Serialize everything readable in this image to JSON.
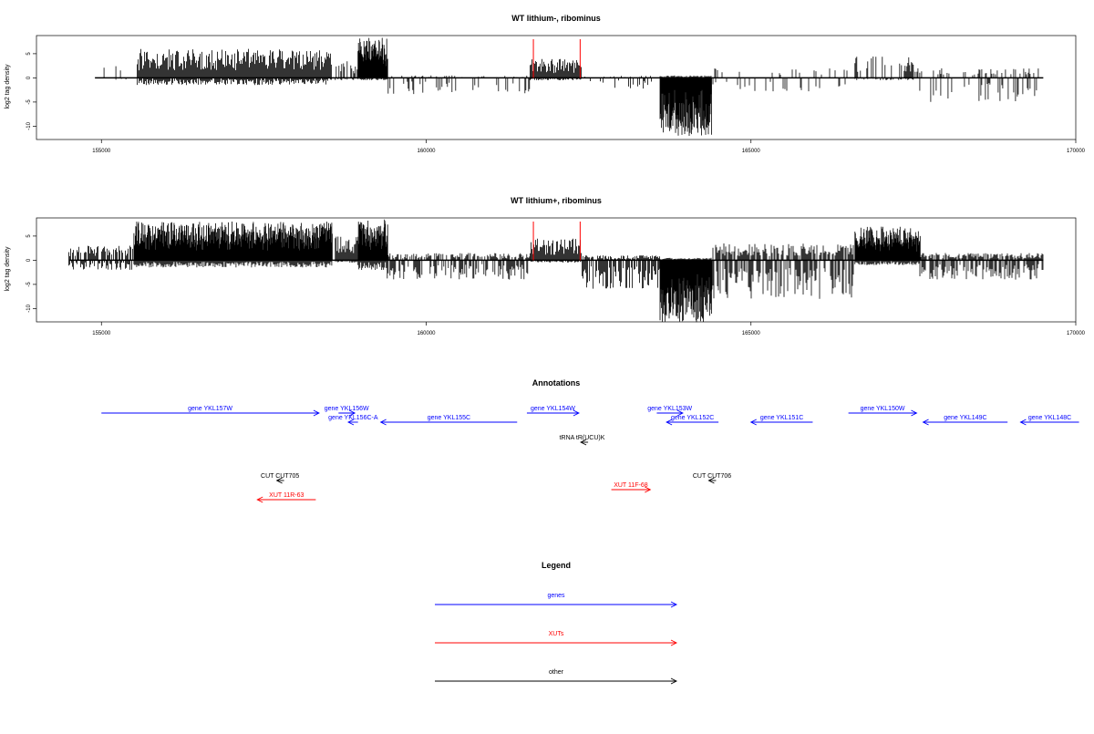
{
  "colors": {
    "gene": "#0000ff",
    "xut": "#ff0000",
    "other": "#000000",
    "marker": "#ff0000",
    "bars": "#000000"
  },
  "chart_data": [
    {
      "type": "bar",
      "title": "WT lithium-, ribominus",
      "ylabel": "log2 tag density",
      "xlim": [
        154000,
        170000
      ],
      "ylim": [
        -12,
        8
      ],
      "xticks": [
        155000,
        160000,
        165000,
        170000
      ],
      "yticks": [
        5,
        0,
        -5,
        -10
      ],
      "markers": [
        161650,
        162370
      ],
      "segments": [
        {
          "start": 154900,
          "end": 155400,
          "density": 0.12,
          "pos": 3.5,
          "neg": 0.5
        },
        {
          "start": 155550,
          "end": 158550,
          "density": 1.0,
          "pos": 6.0,
          "neg": 1.5
        },
        {
          "start": 158600,
          "end": 158950,
          "density": 0.5,
          "pos": 3.5,
          "neg": 0.5
        },
        {
          "start": 158950,
          "end": 159400,
          "density": 1.3,
          "pos": 8.5,
          "neg": 0.5
        },
        {
          "start": 159400,
          "end": 161600,
          "density": 0.2,
          "pos": 0.5,
          "neg": 3.5
        },
        {
          "start": 161600,
          "end": 162400,
          "density": 1.0,
          "pos": 4.0,
          "neg": 0.5
        },
        {
          "start": 162400,
          "end": 163600,
          "density": 0.2,
          "pos": 0.5,
          "neg": 2.5
        },
        {
          "start": 163600,
          "end": 164400,
          "density": 2.5,
          "pos": 0.5,
          "neg": 12.0
        },
        {
          "start": 164400,
          "end": 166600,
          "density": 0.15,
          "pos": 2.0,
          "neg": 3.0
        },
        {
          "start": 166600,
          "end": 167500,
          "density": 0.5,
          "pos": 4.5,
          "neg": 0.5
        },
        {
          "start": 167500,
          "end": 169500,
          "density": 0.25,
          "pos": 2.0,
          "neg": 5.0
        }
      ]
    },
    {
      "type": "bar",
      "title": "WT lithium+, ribominus",
      "ylabel": "log2 tag density",
      "xlim": [
        154000,
        170000
      ],
      "ylim": [
        -12,
        8
      ],
      "xticks": [
        155000,
        160000,
        165000,
        170000
      ],
      "yticks": [
        5,
        0,
        -5,
        -10
      ],
      "markers": [
        161650,
        162370
      ],
      "segments": [
        {
          "start": 154500,
          "end": 155500,
          "density": 0.7,
          "pos": 3.0,
          "neg": 2.0
        },
        {
          "start": 155500,
          "end": 158550,
          "density": 1.5,
          "pos": 8.0,
          "neg": 1.5
        },
        {
          "start": 158600,
          "end": 158950,
          "density": 1.0,
          "pos": 5.0,
          "neg": 0.5
        },
        {
          "start": 158950,
          "end": 159400,
          "density": 1.5,
          "pos": 8.5,
          "neg": 2.0
        },
        {
          "start": 159400,
          "end": 161600,
          "density": 0.6,
          "pos": 1.5,
          "neg": 4.0
        },
        {
          "start": 161600,
          "end": 162400,
          "density": 1.0,
          "pos": 4.5,
          "neg": 0.5
        },
        {
          "start": 162400,
          "end": 163600,
          "density": 0.8,
          "pos": 1.0,
          "neg": 6.0
        },
        {
          "start": 163600,
          "end": 164400,
          "density": 2.5,
          "pos": 0.5,
          "neg": 13.0
        },
        {
          "start": 164400,
          "end": 166600,
          "density": 0.7,
          "pos": 3.5,
          "neg": 8.0
        },
        {
          "start": 166600,
          "end": 167600,
          "density": 1.3,
          "pos": 7.0,
          "neg": 1.0
        },
        {
          "start": 167600,
          "end": 169500,
          "density": 0.8,
          "pos": 1.5,
          "neg": 4.0
        }
      ]
    }
  ],
  "annotations": {
    "title": "Annotations",
    "xlim": [
      154000,
      170000
    ],
    "features": [
      {
        "label": "gene YKL157W",
        "type": "gene",
        "start": 155000,
        "end": 158350,
        "strand": "+",
        "row": 0
      },
      {
        "label": "gene YKL156W",
        "type": "gene",
        "start": 158650,
        "end": 158900,
        "strand": "+",
        "row": 0
      },
      {
        "label": "gene YKL156C-A",
        "type": "gene",
        "start": 158800,
        "end": 158950,
        "strand": "-",
        "row": 1
      },
      {
        "label": "gene YKL155C",
        "type": "gene",
        "start": 159300,
        "end": 161400,
        "strand": "-",
        "row": 1
      },
      {
        "label": "gene YKL154W",
        "type": "gene",
        "start": 161550,
        "end": 162350,
        "strand": "+",
        "row": 0
      },
      {
        "label": "gene YKL153W",
        "type": "gene",
        "start": 163550,
        "end": 163950,
        "strand": "+",
        "row": 0
      },
      {
        "label": "gene YKL152C",
        "type": "gene",
        "start": 163700,
        "end": 164500,
        "strand": "-",
        "row": 1
      },
      {
        "label": "gene YKL151C",
        "type": "gene",
        "start": 165000,
        "end": 165950,
        "strand": "-",
        "row": 1
      },
      {
        "label": "gene YKL150W",
        "type": "gene",
        "start": 166500,
        "end": 167550,
        "strand": "+",
        "row": 0
      },
      {
        "label": "gene YKL149C",
        "type": "gene",
        "start": 167650,
        "end": 168950,
        "strand": "-",
        "row": 1
      },
      {
        "label": "gene YKL148C",
        "type": "gene",
        "start": 169150,
        "end": 170050,
        "strand": "-",
        "row": 1
      },
      {
        "label": "tRNA tR(UCU)K",
        "type": "other",
        "start": 162380,
        "end": 162420,
        "strand": "-",
        "row": 2
      },
      {
        "label": "CUT CUT705",
        "type": "other",
        "start": 157700,
        "end": 157800,
        "strand": "-",
        "row": 4
      },
      {
        "label": "XUT 11R-63",
        "type": "xut",
        "start": 157400,
        "end": 158300,
        "strand": "-",
        "row": 5
      },
      {
        "label": "XUT 11F-68",
        "type": "xut",
        "start": 162850,
        "end": 163450,
        "strand": "+",
        "row": 4.5
      },
      {
        "label": "CUT CUT706",
        "type": "other",
        "start": 164350,
        "end": 164450,
        "strand": "-",
        "row": 4
      }
    ]
  },
  "legend": {
    "title": "Legend",
    "items": [
      {
        "label": "genes",
        "type": "gene"
      },
      {
        "label": "XUTs",
        "type": "xut"
      },
      {
        "label": "other",
        "type": "other"
      }
    ]
  }
}
